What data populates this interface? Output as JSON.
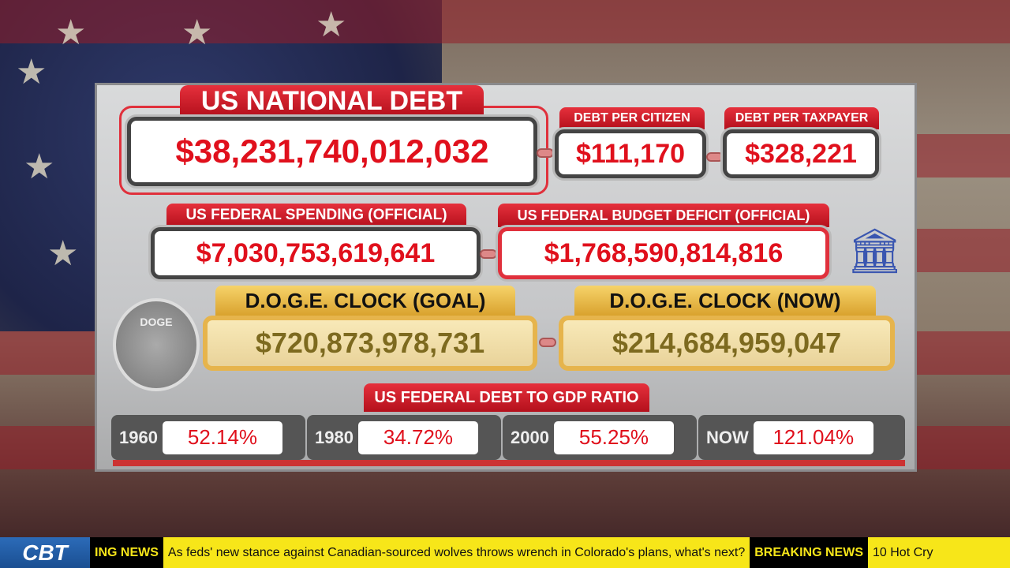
{
  "national_debt": {
    "label": "US NATIONAL DEBT",
    "value": "$38,231,740,012,032"
  },
  "per_citizen": {
    "label": "DEBT PER CITIZEN",
    "value": "$111,170"
  },
  "per_taxpayer": {
    "label": "DEBT PER TAXPAYER",
    "value": "$328,221"
  },
  "spending": {
    "label": "US FEDERAL SPENDING (OFFICIAL)",
    "value": "$7,030,753,619,641"
  },
  "deficit": {
    "label": "US FEDERAL BUDGET DEFICIT (OFFICIAL)",
    "value": "$1,768,590,814,816"
  },
  "doge_goal": {
    "label": "D.O.G.E. CLOCK (GOAL)",
    "value": "$720,873,978,731"
  },
  "doge_now": {
    "label": "D.O.G.E. CLOCK (NOW)",
    "value": "$214,684,959,047"
  },
  "doge_badge": "DOGE",
  "gdp": {
    "label": "US FEDERAL DEBT TO GDP RATIO",
    "items": [
      {
        "year": "1960",
        "value": "52.14%"
      },
      {
        "year": "1980",
        "value": "34.72%"
      },
      {
        "year": "2000",
        "value": "55.25%"
      },
      {
        "year": "NOW",
        "value": "121.04%"
      }
    ]
  },
  "ticker": {
    "logo": "CBT",
    "tag1": "ING NEWS",
    "headline1": "As feds' new stance against Canadian-sourced wolves throws wrench in Colorado's plans, what's next?",
    "tag2": "BREAKING NEWS",
    "headline2": "10 Hot Cry"
  }
}
